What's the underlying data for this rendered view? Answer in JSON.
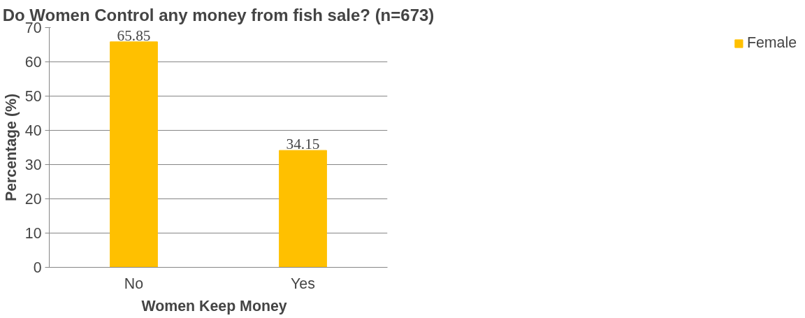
{
  "chart_data": {
    "type": "bar",
    "title": "Do Women Control any money from fish sale? (n=673)",
    "xlabel": "Women  Keep  Money",
    "ylabel": "Percentage (%)",
    "categories": [
      "No",
      "Yes"
    ],
    "series": [
      {
        "name": "Female",
        "color": "#ffc000",
        "values": [
          65.85,
          34.15
        ]
      }
    ],
    "ylim": [
      0,
      70
    ],
    "yticks": [
      0,
      10,
      20,
      30,
      40,
      50,
      60,
      70
    ],
    "grid": "y",
    "legend": "right",
    "data_labels": true
  }
}
